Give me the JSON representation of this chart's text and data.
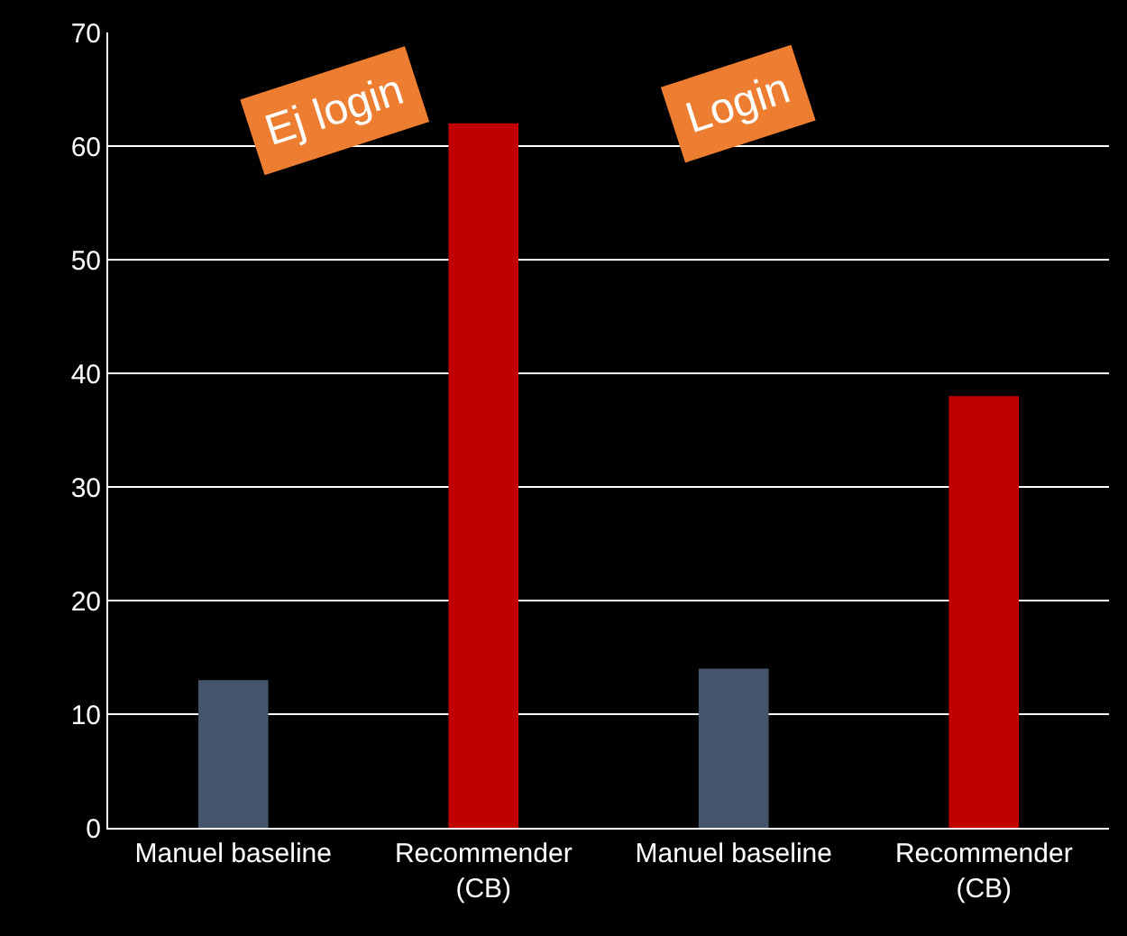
{
  "chart_data": {
    "type": "bar",
    "categories": [
      "Manuel baseline",
      "Recommender (CB)",
      "Manuel baseline",
      "Recommender (CB)"
    ],
    "values": [
      13,
      62,
      14,
      38
    ],
    "colors": [
      "#44546a",
      "#c00000",
      "#44546a",
      "#c00000"
    ],
    "ylim": [
      0,
      70
    ],
    "yticks": [
      0,
      10,
      20,
      30,
      40,
      50,
      60,
      70
    ],
    "grid": "y",
    "annotations": [
      "Ej login",
      "Login"
    ]
  }
}
